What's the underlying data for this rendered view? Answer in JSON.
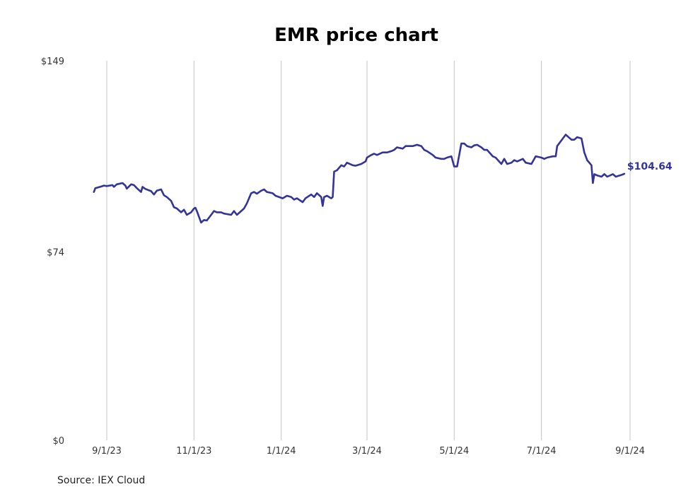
{
  "chart_data": {
    "type": "line",
    "title": "EMR price chart",
    "xlabel": "",
    "ylabel": "",
    "ylim": [
      0,
      149
    ],
    "y_ticks": [
      {
        "value": 0,
        "label": "$0"
      },
      {
        "value": 74,
        "label": "$74"
      },
      {
        "value": 149,
        "label": "$149"
      }
    ],
    "x_ticks": [
      {
        "value": "2023-09-01",
        "label": "9/1/23"
      },
      {
        "value": "2023-11-01",
        "label": "11/1/23"
      },
      {
        "value": "2024-01-01",
        "label": "1/1/24"
      },
      {
        "value": "2024-03-01",
        "label": "3/1/24"
      },
      {
        "value": "2024-05-01",
        "label": "5/1/24"
      },
      {
        "value": "2024-07-01",
        "label": "7/1/24"
      },
      {
        "value": "2024-09-01",
        "label": "9/1/24"
      }
    ],
    "grid": {
      "vertical": true,
      "horizontal": false
    },
    "legend": "none",
    "line_color": "#33339a",
    "last_value_label": "$104.64",
    "series": [
      {
        "points": [
          [
            "2023-08-23",
            97.5
          ],
          [
            "2023-08-24",
            99.0
          ],
          [
            "2023-08-28",
            99.6
          ],
          [
            "2023-08-30",
            100.0
          ],
          [
            "2023-09-01",
            99.8
          ],
          [
            "2023-09-05",
            100.2
          ],
          [
            "2023-09-06",
            99.5
          ],
          [
            "2023-09-08",
            100.5
          ],
          [
            "2023-09-12",
            101.0
          ],
          [
            "2023-09-14",
            100.0
          ],
          [
            "2023-09-15",
            98.8
          ],
          [
            "2023-09-18",
            100.5
          ],
          [
            "2023-09-20",
            100.2
          ],
          [
            "2023-09-22",
            99.0
          ],
          [
            "2023-09-25",
            97.5
          ],
          [
            "2023-09-26",
            99.5
          ],
          [
            "2023-09-28",
            98.7
          ],
          [
            "2023-10-02",
            97.8
          ],
          [
            "2023-10-04",
            96.5
          ],
          [
            "2023-10-06",
            98.0
          ],
          [
            "2023-10-09",
            98.5
          ],
          [
            "2023-10-11",
            96.2
          ],
          [
            "2023-10-13",
            95.5
          ],
          [
            "2023-10-16",
            94.0
          ],
          [
            "2023-10-18",
            91.5
          ],
          [
            "2023-10-20",
            91.0
          ],
          [
            "2023-10-23",
            89.5
          ],
          [
            "2023-10-25",
            90.5
          ],
          [
            "2023-10-27",
            88.5
          ],
          [
            "2023-10-30",
            89.5
          ],
          [
            "2023-11-01",
            91.0
          ],
          [
            "2023-11-02",
            91.3
          ],
          [
            "2023-11-03",
            90.0
          ],
          [
            "2023-11-06",
            85.5
          ],
          [
            "2023-11-08",
            86.5
          ],
          [
            "2023-11-10",
            86.3
          ],
          [
            "2023-11-13",
            88.5
          ],
          [
            "2023-11-15",
            90.0
          ],
          [
            "2023-11-17",
            89.5
          ],
          [
            "2023-11-20",
            89.5
          ],
          [
            "2023-11-22",
            89.0
          ],
          [
            "2023-11-27",
            88.5
          ],
          [
            "2023-11-29",
            90.0
          ],
          [
            "2023-12-01",
            88.5
          ],
          [
            "2023-12-04",
            90.0
          ],
          [
            "2023-12-06",
            91.0
          ],
          [
            "2023-12-08",
            93.0
          ],
          [
            "2023-12-11",
            97.0
          ],
          [
            "2023-12-13",
            97.5
          ],
          [
            "2023-12-15",
            96.8
          ],
          [
            "2023-12-18",
            98.0
          ],
          [
            "2023-12-20",
            98.5
          ],
          [
            "2023-12-22",
            97.5
          ],
          [
            "2023-12-26",
            97.0
          ],
          [
            "2023-12-28",
            96.0
          ],
          [
            "2024-01-02",
            95.0
          ],
          [
            "2024-01-05",
            96.0
          ],
          [
            "2024-01-08",
            95.5
          ],
          [
            "2024-01-10",
            94.5
          ],
          [
            "2024-01-12",
            95.0
          ],
          [
            "2024-01-16",
            93.5
          ],
          [
            "2024-01-18",
            95.0
          ],
          [
            "2024-01-22",
            96.5
          ],
          [
            "2024-01-24",
            95.5
          ],
          [
            "2024-01-26",
            97.0
          ],
          [
            "2024-01-29",
            95.5
          ],
          [
            "2024-01-30",
            92.0
          ],
          [
            "2024-01-31",
            95.5
          ],
          [
            "2024-02-02",
            96.0
          ],
          [
            "2024-02-05",
            95.0
          ],
          [
            "2024-02-06",
            95.5
          ],
          [
            "2024-02-07",
            105.5
          ],
          [
            "2024-02-09",
            106.0
          ],
          [
            "2024-02-12",
            108.0
          ],
          [
            "2024-02-14",
            107.5
          ],
          [
            "2024-02-16",
            109.0
          ],
          [
            "2024-02-20",
            108.0
          ],
          [
            "2024-02-22",
            107.8
          ],
          [
            "2024-02-26",
            108.5
          ],
          [
            "2024-02-29",
            109.5
          ],
          [
            "2024-03-01",
            111.0
          ],
          [
            "2024-03-04",
            112.0
          ],
          [
            "2024-03-06",
            112.5
          ],
          [
            "2024-03-08",
            112.0
          ],
          [
            "2024-03-12",
            113.0
          ],
          [
            "2024-03-15",
            113.0
          ],
          [
            "2024-03-18",
            113.5
          ],
          [
            "2024-03-20",
            114.0
          ],
          [
            "2024-03-22",
            115.0
          ],
          [
            "2024-03-26",
            114.5
          ],
          [
            "2024-03-28",
            115.5
          ],
          [
            "2024-04-02",
            115.5
          ],
          [
            "2024-04-05",
            116.0
          ],
          [
            "2024-04-08",
            115.5
          ],
          [
            "2024-04-10",
            114.0
          ],
          [
            "2024-04-12",
            113.5
          ],
          [
            "2024-04-16",
            112.0
          ],
          [
            "2024-04-18",
            111.0
          ],
          [
            "2024-04-22",
            110.5
          ],
          [
            "2024-04-24",
            110.5
          ],
          [
            "2024-04-26",
            111.0
          ],
          [
            "2024-04-29",
            111.5
          ],
          [
            "2024-05-01",
            107.5
          ],
          [
            "2024-05-03",
            107.5
          ],
          [
            "2024-05-06",
            116.5
          ],
          [
            "2024-05-08",
            116.5
          ],
          [
            "2024-05-10",
            115.5
          ],
          [
            "2024-05-13",
            115.0
          ],
          [
            "2024-05-15",
            115.8
          ],
          [
            "2024-05-17",
            116.0
          ],
          [
            "2024-05-20",
            115.0
          ],
          [
            "2024-05-22",
            114.0
          ],
          [
            "2024-05-24",
            114.0
          ],
          [
            "2024-05-28",
            111.5
          ],
          [
            "2024-05-30",
            111.0
          ],
          [
            "2024-06-03",
            108.5
          ],
          [
            "2024-06-05",
            110.5
          ],
          [
            "2024-06-07",
            108.5
          ],
          [
            "2024-06-10",
            109.0
          ],
          [
            "2024-06-12",
            110.0
          ],
          [
            "2024-06-14",
            109.5
          ],
          [
            "2024-06-18",
            110.5
          ],
          [
            "2024-06-20",
            109.0
          ],
          [
            "2024-06-24",
            108.5
          ],
          [
            "2024-06-27",
            111.5
          ],
          [
            "2024-07-01",
            111.0
          ],
          [
            "2024-07-03",
            110.5
          ],
          [
            "2024-07-05",
            111.0
          ],
          [
            "2024-07-09",
            111.5
          ],
          [
            "2024-07-11",
            111.5
          ],
          [
            "2024-07-12",
            115.5
          ],
          [
            "2024-07-16",
            118.5
          ],
          [
            "2024-07-18",
            120.0
          ],
          [
            "2024-07-22",
            118.0
          ],
          [
            "2024-07-24",
            118.0
          ],
          [
            "2024-07-26",
            119.0
          ],
          [
            "2024-07-29",
            118.5
          ],
          [
            "2024-07-31",
            113.0
          ],
          [
            "2024-08-02",
            110.0
          ],
          [
            "2024-08-05",
            108.0
          ],
          [
            "2024-08-06",
            101.0
          ],
          [
            "2024-08-07",
            104.5
          ],
          [
            "2024-08-09",
            104.0
          ],
          [
            "2024-08-12",
            103.5
          ],
          [
            "2024-08-14",
            104.5
          ],
          [
            "2024-08-16",
            103.5
          ],
          [
            "2024-08-20",
            104.5
          ],
          [
            "2024-08-22",
            103.5
          ],
          [
            "2024-08-26",
            104.2
          ],
          [
            "2024-08-28",
            104.64
          ]
        ]
      }
    ]
  },
  "footer": {
    "source": "Source: IEX Cloud"
  }
}
